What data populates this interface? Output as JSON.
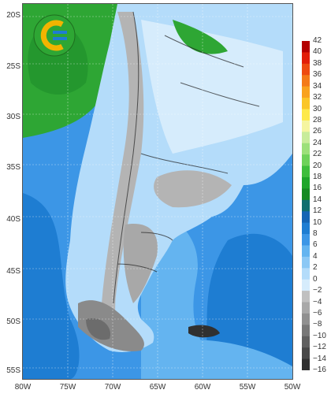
{
  "map": {
    "lat_labels": [
      "20S",
      "25S",
      "30S",
      "35S",
      "40S",
      "45S",
      "50S",
      "55S"
    ],
    "lon_labels": [
      "80W",
      "75W",
      "70W",
      "65W",
      "60W",
      "55W",
      "50W"
    ],
    "colorbar": {
      "ticks": [
        "42",
        "40",
        "38",
        "36",
        "34",
        "32",
        "30",
        "28",
        "26",
        "24",
        "22",
        "20",
        "18",
        "16",
        "14",
        "12",
        "10",
        "8",
        "6",
        "4",
        "2",
        "0",
        "−2",
        "−4",
        "−6",
        "−8",
        "−10",
        "−12",
        "−14",
        "−16"
      ],
      "colors": [
        "#b40000",
        "#e21d08",
        "#ee4a10",
        "#f47a18",
        "#f9a21e",
        "#fbc628",
        "#fde94a",
        "#f5f5a0",
        "#c8ec9a",
        "#9ce07a",
        "#6ed25a",
        "#3ebe3c",
        "#1ea62a",
        "#158a22",
        "#106e6e",
        "#1464b4",
        "#1e7dd2",
        "#3c96e6",
        "#64b4f0",
        "#8cc8f5",
        "#b4dcfa",
        "#d6ecfc",
        "#c0c0c0",
        "#a8a8a8",
        "#909090",
        "#787878",
        "#606060",
        "#484848",
        "#303030"
      ]
    },
    "colors": {
      "ocean_deep": "#1e7dd2",
      "ocean": "#3c96e6",
      "ocean_light": "#64b4f0",
      "land_light": "#b4dcfa",
      "land_pale": "#d6ecfc",
      "land_green": "#2ea634",
      "land_green_dark": "#1e8a2a",
      "land_gray": "#b4b4b4",
      "land_gray_dark": "#8a8a8a"
    },
    "icons": {
      "logo": "c-logo-icon"
    }
  }
}
